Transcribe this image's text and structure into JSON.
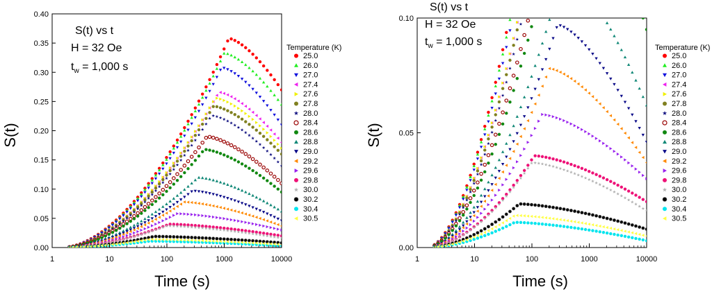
{
  "chart_data": [
    {
      "type": "scatter",
      "panel": "left",
      "annotation": {
        "line1": "S(t) vs t",
        "line2": "H = 32 Oe",
        "line3_prefix": "t",
        "line3_sub": "w",
        "line3_rest": " = 1,000 s"
      },
      "xlabel": "Time (s)",
      "ylabel": "S(t)",
      "xscale": "log",
      "xlim": [
        1,
        10000
      ],
      "ylim": [
        0,
        0.4
      ],
      "xticks": [
        "1",
        "10",
        "100",
        "1000",
        "10000"
      ],
      "yticks": [
        "0.00",
        "0.05",
        "0.10",
        "0.15",
        "0.20",
        "0.25",
        "0.30",
        "0.35",
        "0.40"
      ],
      "legend_title": "Temperature (K)"
    },
    {
      "type": "scatter",
      "panel": "right",
      "annotation": {
        "line1": "S(t) vs t",
        "line2": "H = 32 Oe",
        "line3_prefix": "t",
        "line3_sub": "w",
        "line3_rest": " = 1,000 s"
      },
      "xlabel": "Time (s)",
      "ylabel": "S(t)",
      "xscale": "log",
      "xlim": [
        1,
        10000
      ],
      "ylim": [
        0,
        0.1
      ],
      "xticks": [
        "1",
        "10",
        "100",
        "1000",
        "10000"
      ],
      "yticks": [
        "0.00",
        "0.05",
        "0.10"
      ],
      "legend_title": "Temperature (K)"
    }
  ],
  "series": [
    {
      "name": "25.0",
      "color": "#ff0000",
      "marker": "circle",
      "peak_value": 0.358,
      "peak_time": 1200,
      "end_value": 0.27
    },
    {
      "name": "26.0",
      "color": "#22ee22",
      "marker": "triangle-up",
      "peak_value": 0.333,
      "peak_time": 1000,
      "end_value": 0.245
    },
    {
      "name": "27.0",
      "color": "#1010dd",
      "marker": "triangle-down",
      "peak_value": 0.308,
      "peak_time": 900,
      "end_value": 0.21
    },
    {
      "name": "27.4",
      "color": "#ee22ee",
      "marker": "triangle-left",
      "peak_value": 0.266,
      "peak_time": 800,
      "end_value": 0.18
    },
    {
      "name": "27.6",
      "color": "#f0f000",
      "marker": "triangle-right",
      "peak_value": 0.256,
      "peak_time": 700,
      "end_value": 0.17
    },
    {
      "name": "27.8",
      "color": "#808020",
      "marker": "circle",
      "peak_value": 0.242,
      "peak_time": 650,
      "end_value": 0.16
    },
    {
      "name": "28.0",
      "color": "#101080",
      "marker": "star",
      "peak_value": 0.226,
      "peak_time": 600,
      "end_value": 0.14
    },
    {
      "name": "28.4",
      "color": "#990000",
      "marker": "circle-open",
      "peak_value": 0.19,
      "peak_time": 500,
      "end_value": 0.11
    },
    {
      "name": "28.6",
      "color": "#118811",
      "marker": "circle",
      "peak_value": 0.168,
      "peak_time": 450,
      "end_value": 0.095
    },
    {
      "name": "28.8",
      "color": "#118877",
      "marker": "triangle-up",
      "peak_value": 0.12,
      "peak_time": 350,
      "end_value": 0.062
    },
    {
      "name": "29.0",
      "color": "#0a0a88",
      "marker": "triangle-down",
      "peak_value": 0.097,
      "peak_time": 280,
      "end_value": 0.046
    },
    {
      "name": "29.2",
      "color": "#ff8800",
      "marker": "triangle-left",
      "peak_value": 0.078,
      "peak_time": 200,
      "end_value": 0.037
    },
    {
      "name": "29.6",
      "color": "#9922ee",
      "marker": "triangle-right",
      "peak_value": 0.058,
      "peak_time": 150,
      "end_value": 0.03
    },
    {
      "name": "29.8",
      "color": "#ee1177",
      "marker": "circle",
      "peak_value": 0.04,
      "peak_time": 110,
      "end_value": 0.02
    },
    {
      "name": "30.0",
      "color": "#b0b0b0",
      "marker": "star",
      "peak_value": 0.037,
      "peak_time": 100,
      "end_value": 0.016
    },
    {
      "name": "30.2",
      "color": "#000000",
      "marker": "circle-half",
      "peak_value": 0.019,
      "peak_time": 60,
      "end_value": 0.008
    },
    {
      "name": "30.4",
      "color": "#00e5ee",
      "marker": "circle",
      "peak_value": 0.011,
      "peak_time": 50,
      "end_value": 0.003
    },
    {
      "name": "30.5",
      "color": "#ffff44",
      "marker": "triangle-left",
      "peak_value": 0.014,
      "peak_time": 50,
      "end_value": 0.005
    }
  ]
}
